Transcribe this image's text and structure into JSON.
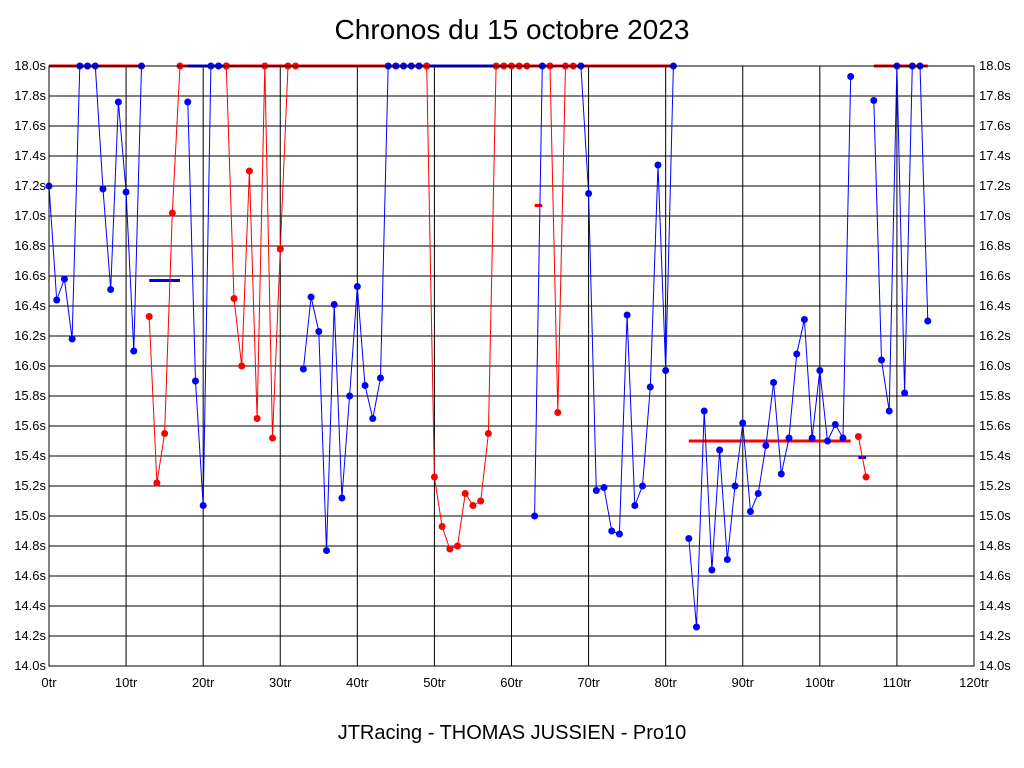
{
  "title": "Chronos du 15 octobre 2023",
  "subtitle": "JTRacing - THOMAS JUSSIEN - Pro10",
  "chart_data": {
    "type": "line",
    "title": "Chronos du 15 octobre 2023",
    "subtitle": "JTRacing - THOMAS JUSSIEN - Pro10",
    "x_unit": "tr",
    "y_unit": "s",
    "xlim": [
      0,
      120
    ],
    "ylim": [
      14.0,
      18.0
    ],
    "x_ticks": [
      0,
      10,
      20,
      30,
      40,
      50,
      60,
      70,
      80,
      90,
      100,
      110,
      120
    ],
    "y_ticks": [
      14.0,
      14.2,
      14.4,
      14.6,
      14.8,
      15.0,
      15.2,
      15.4,
      15.6,
      15.8,
      16.0,
      16.2,
      16.4,
      16.6,
      16.8,
      17.0,
      17.2,
      17.4,
      17.6,
      17.8,
      18.0
    ],
    "grid": true,
    "colors": {
      "blue": "#0000ff",
      "red": "#ff0000",
      "grid": "#000000"
    },
    "series": [
      {
        "color": "blue",
        "points": [
          [
            0,
            17.2
          ],
          [
            1,
            16.44
          ],
          [
            2,
            16.58
          ],
          [
            3,
            16.18
          ],
          [
            4,
            18.0
          ],
          [
            5,
            18.0
          ],
          [
            6,
            18.0
          ],
          [
            7,
            17.18
          ],
          [
            8,
            16.51
          ],
          [
            9,
            17.76
          ],
          [
            10,
            17.16
          ],
          [
            11,
            16.1
          ],
          [
            12,
            18.0
          ]
        ]
      },
      {
        "color": "red",
        "points": [
          [
            13,
            16.33
          ],
          [
            14,
            15.22
          ],
          [
            15,
            15.55
          ],
          [
            16,
            17.02
          ],
          [
            17,
            18.0
          ]
        ]
      },
      {
        "color": "blue",
        "points": [
          [
            18,
            17.76
          ],
          [
            19,
            15.9
          ],
          [
            20,
            15.07
          ],
          [
            21,
            18.0
          ],
          [
            22,
            18.0
          ],
          [
            23,
            18.0
          ]
        ]
      },
      {
        "color": "red",
        "points": [
          [
            23,
            18.0
          ],
          [
            24,
            16.45
          ],
          [
            25,
            16.0
          ],
          [
            26,
            17.3
          ],
          [
            27,
            15.65
          ],
          [
            28,
            18.0
          ],
          [
            29,
            15.52
          ],
          [
            30,
            16.78
          ],
          [
            31,
            18.0
          ],
          [
            32,
            18.0
          ]
        ]
      },
      {
        "color": "blue",
        "points": [
          [
            33,
            15.98
          ],
          [
            34,
            16.46
          ],
          [
            35,
            16.23
          ],
          [
            36,
            14.77
          ],
          [
            37,
            16.41
          ],
          [
            38,
            15.12
          ],
          [
            39,
            15.8
          ],
          [
            40,
            16.53
          ],
          [
            41,
            15.87
          ],
          [
            42,
            15.65
          ],
          [
            43,
            15.92
          ],
          [
            44,
            18.0
          ],
          [
            45,
            18.0
          ],
          [
            46,
            18.0
          ],
          [
            47,
            18.0
          ],
          [
            48,
            18.0
          ],
          [
            49,
            18.0
          ]
        ]
      },
      {
        "color": "red",
        "points": [
          [
            49,
            18.0
          ],
          [
            50,
            15.26
          ],
          [
            51,
            14.93
          ],
          [
            52,
            14.78
          ],
          [
            53,
            14.8
          ],
          [
            54,
            15.15
          ],
          [
            55,
            15.07
          ],
          [
            56,
            15.1
          ],
          [
            57,
            15.55
          ],
          [
            58,
            18.0
          ],
          [
            59,
            18.0
          ],
          [
            60,
            18.0
          ],
          [
            61,
            18.0
          ],
          [
            62,
            18.0
          ]
        ]
      },
      {
        "color": "blue",
        "points": [
          [
            63,
            15.0
          ],
          [
            64,
            18.0
          ]
        ]
      },
      {
        "color": "red",
        "points": [
          [
            65,
            18.0
          ],
          [
            66,
            15.69
          ],
          [
            67,
            18.0
          ],
          [
            68,
            18.0
          ]
        ]
      },
      {
        "color": "blue",
        "points": [
          [
            69,
            18.0
          ],
          [
            70,
            17.15
          ],
          [
            71,
            15.17
          ],
          [
            72,
            15.19
          ],
          [
            73,
            14.9
          ],
          [
            74,
            14.88
          ],
          [
            75,
            16.34
          ],
          [
            76,
            15.07
          ],
          [
            77,
            15.2
          ],
          [
            78,
            15.86
          ],
          [
            79,
            17.34
          ],
          [
            80,
            15.97
          ],
          [
            81,
            18.0
          ]
        ]
      },
      {
        "color": "blue",
        "points": [
          [
            83,
            14.85
          ],
          [
            84,
            14.26
          ],
          [
            85,
            15.7
          ],
          [
            86,
            14.64
          ],
          [
            87,
            15.44
          ],
          [
            88,
            14.71
          ],
          [
            89,
            15.2
          ],
          [
            90,
            15.62
          ],
          [
            91,
            15.03
          ],
          [
            92,
            15.15
          ],
          [
            93,
            15.47
          ],
          [
            94,
            15.89
          ],
          [
            95,
            15.28
          ],
          [
            96,
            15.52
          ],
          [
            97,
            16.08
          ],
          [
            98,
            16.31
          ],
          [
            99,
            15.52
          ],
          [
            100,
            15.97
          ],
          [
            101,
            15.5
          ],
          [
            102,
            15.61
          ],
          [
            103,
            15.52
          ],
          [
            104,
            17.93
          ]
        ]
      },
      {
        "color": "red",
        "points": [
          [
            105,
            15.53
          ],
          [
            106,
            15.26
          ]
        ]
      },
      {
        "color": "blue",
        "points": [
          [
            107,
            17.77
          ],
          [
            108,
            16.04
          ],
          [
            109,
            15.7
          ],
          [
            110,
            18.0
          ],
          [
            111,
            15.82
          ],
          [
            112,
            18.0
          ],
          [
            113,
            18.0
          ],
          [
            114,
            16.3
          ]
        ]
      }
    ],
    "reference_lines": [
      {
        "color": "red",
        "x_start": 0,
        "x_end": 12,
        "y": 18.0
      },
      {
        "color": "red",
        "x_start": 17,
        "x_end": 18,
        "y": 18.0
      },
      {
        "color": "blue",
        "x_start": 18,
        "x_end": 23,
        "y": 18.0
      },
      {
        "color": "red",
        "x_start": 23,
        "x_end": 49,
        "y": 18.0
      },
      {
        "color": "blue",
        "x_start": 49,
        "x_end": 60,
        "y": 18.0
      },
      {
        "color": "red",
        "x_start": 60,
        "x_end": 81,
        "y": 18.0
      },
      {
        "color": "red",
        "x_start": 107,
        "x_end": 114,
        "y": 18.0
      },
      {
        "color": "blue",
        "x_start": 13,
        "x_end": 17,
        "y": 16.57
      },
      {
        "color": "red",
        "x_start": 63,
        "x_end": 64,
        "y": 17.07
      },
      {
        "color": "red",
        "x_start": 83,
        "x_end": 104,
        "y": 15.5
      },
      {
        "color": "blue",
        "x_start": 105,
        "x_end": 106,
        "y": 15.39
      }
    ]
  }
}
